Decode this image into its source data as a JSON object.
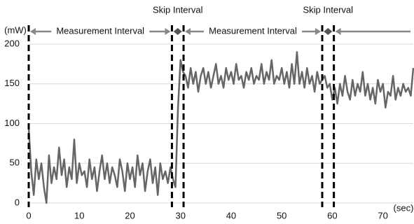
{
  "chart_data": {
    "type": "line",
    "ylabel": "(mW)",
    "xlabel": "(sec)",
    "skip_labels": [
      "Skip Interval",
      "Skip Interval"
    ],
    "interval_labels": [
      "Measurement Interval",
      "Measurement Interval"
    ],
    "markers": [
      0,
      28.3,
      30.6,
      58,
      60.3
    ],
    "xlim": [
      0,
      76
    ],
    "xticks": [
      0,
      10,
      20,
      30,
      40,
      50,
      60,
      70
    ],
    "ylim": [
      0,
      200
    ],
    "yticks": [
      0,
      50,
      100,
      150,
      200
    ],
    "grid": true,
    "x": [
      0,
      0.5,
      1,
      1.5,
      2,
      2.5,
      3,
      3.5,
      4,
      4.5,
      5,
      5.5,
      6,
      6.5,
      7,
      7.5,
      8,
      8.5,
      9,
      9.5,
      10,
      10.5,
      11,
      11.5,
      12,
      12.5,
      13,
      13.5,
      14,
      14.5,
      15,
      15.5,
      16,
      16.5,
      17,
      17.5,
      18,
      18.5,
      19,
      19.5,
      20,
      20.5,
      21,
      21.5,
      22,
      22.5,
      23,
      23.5,
      24,
      24.5,
      25,
      25.5,
      26,
      26.5,
      27,
      27.5,
      28,
      28.5,
      29,
      29.5,
      30,
      30.5,
      31,
      31.5,
      32,
      32.5,
      33,
      33.5,
      34,
      34.5,
      35,
      35.5,
      36,
      36.5,
      37,
      37.5,
      38,
      38.5,
      39,
      39.5,
      40,
      40.5,
      41,
      41.5,
      42,
      42.5,
      43,
      43.5,
      44,
      44.5,
      45,
      45.5,
      46,
      46.5,
      47,
      47.5,
      48,
      48.5,
      49,
      49.5,
      50,
      50.5,
      51,
      51.5,
      52,
      52.5,
      53,
      53.5,
      54,
      54.5,
      55,
      55.5,
      56,
      56.5,
      57,
      57.5,
      58,
      58.5,
      59,
      59.5,
      60,
      60.5,
      61,
      61.5,
      62,
      62.5,
      63,
      63.5,
      64,
      64.5,
      65,
      65.5,
      66,
      66.5,
      67,
      67.5,
      68,
      68.5,
      69,
      69.5,
      70,
      70.5,
      71,
      71.5,
      72,
      72.5,
      73,
      73.5,
      74,
      74.5,
      75,
      75.5,
      76
    ],
    "series": [
      {
        "color": "#666666",
        "values": [
          95,
          40,
          10,
          55,
          30,
          50,
          20,
          0,
          60,
          25,
          45,
          30,
          70,
          35,
          55,
          20,
          45,
          30,
          80,
          25,
          50,
          35,
          40,
          20,
          55,
          30,
          45,
          15,
          40,
          60,
          30,
          50,
          25,
          45,
          35,
          20,
          55,
          40,
          15,
          50,
          30,
          45,
          20,
          60,
          35,
          50,
          15,
          40,
          55,
          25,
          45,
          10,
          50,
          30,
          40,
          25,
          45,
          30,
          20,
          120,
          180,
          165,
          160,
          145,
          170,
          150,
          165,
          140,
          160,
          170,
          150,
          165,
          145,
          160,
          175,
          150,
          160,
          145,
          170,
          155,
          165,
          150,
          175,
          155,
          160,
          145,
          165,
          155,
          170,
          150,
          160,
          155,
          175,
          150,
          165,
          155,
          180,
          150,
          160,
          155,
          170,
          150,
          165,
          145,
          175,
          150,
          190,
          150,
          165,
          145,
          170,
          150,
          160,
          140,
          165,
          150,
          155,
          160,
          145,
          150,
          130,
          145,
          125,
          150,
          135,
          160,
          140,
          130,
          155,
          135,
          150,
          140,
          165,
          135,
          150,
          130,
          145,
          125,
          155,
          140,
          150,
          120,
          140,
          135,
          160,
          130,
          145,
          135,
          150,
          140,
          145,
          135,
          170
        ]
      }
    ]
  }
}
